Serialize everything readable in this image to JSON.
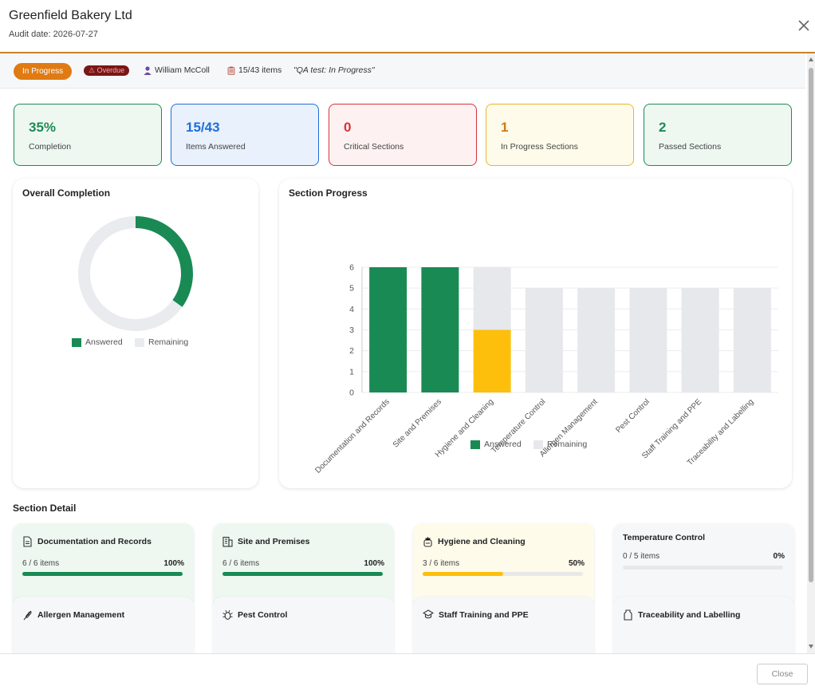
{
  "header": {
    "title": "Greenfield Bakery Ltd",
    "audit_date": "Audit date: 2026-07-27"
  },
  "status_bar": {
    "status": "In Progress",
    "overdue": "⚠ Overdue",
    "assignee": "William McColl",
    "items": "15/43 items",
    "note": "\"QA test: In Progress\""
  },
  "stats": [
    {
      "value": "35%",
      "label": "Completion",
      "color": "#1e8a55",
      "bg": "#eef8f1",
      "border": "#1e8a55"
    },
    {
      "value": "15/43",
      "label": "Items Answered",
      "color": "#1f6fd8",
      "bg": "#e9f1fc",
      "border": "#1f6fd8"
    },
    {
      "value": "0",
      "label": "Critical Sections",
      "color": "#d6333a",
      "bg": "#fdf1f1",
      "border": "#d6333a"
    },
    {
      "value": "1",
      "label": "In Progress Sections",
      "color": "#d07a12",
      "bg": "#fefbea",
      "border": "#e7b62e"
    },
    {
      "value": "2",
      "label": "Passed Sections",
      "color": "#1e8a55",
      "bg": "#eef8f1",
      "border": "#1e8a55"
    }
  ],
  "overall": {
    "title": "Overall Completion",
    "legend_answered": "Answered",
    "legend_remaining": "Remaining"
  },
  "section_progress": {
    "title": "Section Progress",
    "legend_answered": "Answered",
    "legend_remaining": "Remaining"
  },
  "chart_data": [
    {
      "type": "pie",
      "title": "Overall Completion",
      "series": [
        {
          "name": "Answered",
          "values": [
            15
          ],
          "color": "#1a8a55"
        },
        {
          "name": "Remaining",
          "values": [
            28
          ],
          "color": "#e9ebee"
        }
      ]
    },
    {
      "type": "bar",
      "title": "Section Progress",
      "categories": [
        "Documentation and Records",
        "Site and Premises",
        "Hygiene and Cleaning",
        "Temperature Control",
        "Allergen Management",
        "Pest Control",
        "Staff Training and PPE",
        "Traceability and Labelling"
      ],
      "series": [
        {
          "name": "Answered",
          "values": [
            6,
            6,
            3,
            0,
            0,
            0,
            0,
            0
          ]
        },
        {
          "name": "Remaining",
          "values": [
            0,
            0,
            3,
            5,
            5,
            5,
            5,
            5
          ]
        }
      ],
      "highlight": {
        "category": "Hygiene and Cleaning",
        "color": "#fdbf0c"
      },
      "colors": {
        "answered": "#1a8a55",
        "remaining": "#e6e8eb"
      },
      "stacked": true,
      "ylim": [
        0,
        6
      ],
      "yticks": [
        0,
        1,
        2,
        3,
        4,
        5,
        6
      ],
      "grid": true,
      "legend": "bottom"
    }
  ],
  "section_detail": {
    "title": "Section Detail",
    "cards": [
      {
        "name": "Documentation and Records",
        "icon": "document-icon",
        "items": "6 / 6 items",
        "pct": "100%",
        "progress": 100,
        "bar_color": "#1a8a55",
        "bg": "#eef8f1"
      },
      {
        "name": "Site and Premises",
        "icon": "building-icon",
        "items": "6 / 6 items",
        "pct": "100%",
        "progress": 100,
        "bar_color": "#1a8a55",
        "bg": "#eef8f1"
      },
      {
        "name": "Hygiene and Cleaning",
        "icon": "spray-icon",
        "items": "3 / 6 items",
        "pct": "50%",
        "progress": 50,
        "bar_color": "#fdbf0c",
        "bg": "#fefbea"
      },
      {
        "name": "Temperature Control",
        "icon": "",
        "items": "0 / 5 items",
        "pct": "0%",
        "progress": 0,
        "bar_color": "#e6e8eb",
        "bg": "#f6f7f9"
      },
      {
        "name": "Allergen Management",
        "icon": "wheat-icon",
        "items": "",
        "pct": "",
        "progress": 0,
        "bar_color": "#e6e8eb",
        "bg": "#f6f7f9"
      },
      {
        "name": "Pest Control",
        "icon": "bug-icon",
        "items": "",
        "pct": "",
        "progress": 0,
        "bar_color": "#e6e8eb",
        "bg": "#f6f7f9"
      },
      {
        "name": "Staff Training and PPE",
        "icon": "graduation-cap-icon",
        "items": "",
        "pct": "",
        "progress": 0,
        "bar_color": "#e6e8eb",
        "bg": "#f6f7f9"
      },
      {
        "name": "Traceability and Labelling",
        "icon": "tag-icon",
        "items": "",
        "pct": "",
        "progress": 0,
        "bar_color": "#e6e8eb",
        "bg": "#f6f7f9"
      }
    ]
  },
  "footer": {
    "close_label": "Close"
  }
}
